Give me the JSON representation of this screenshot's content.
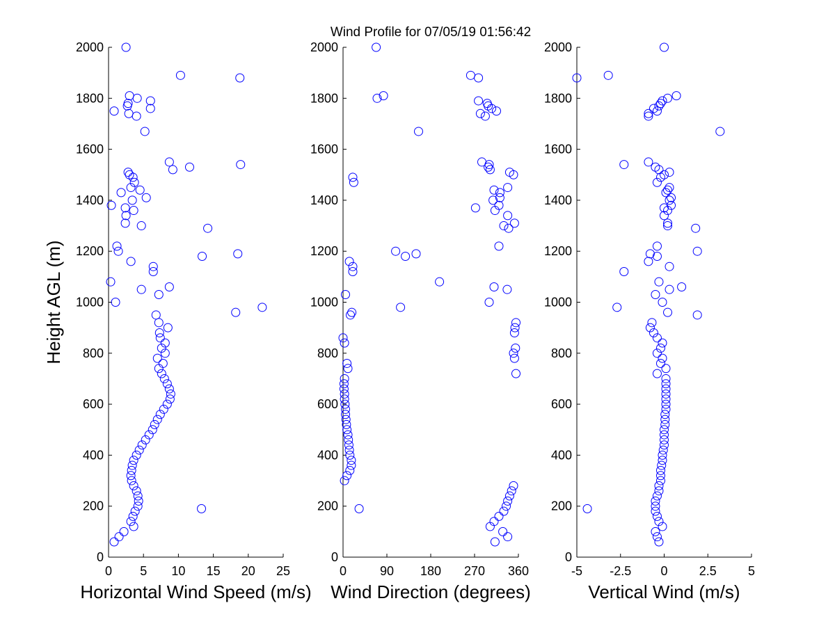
{
  "chart_data": [
    {
      "type": "scatter",
      "color": "#0000ff",
      "xlabel": "Horizontal Wind Speed (m/s)",
      "ylabel": "Height AGL (m)",
      "xlim": [
        0,
        25
      ],
      "xticks": [
        0,
        5,
        10,
        15,
        20,
        25
      ],
      "ylim": [
        0,
        2000
      ],
      "yticks": [
        0,
        200,
        400,
        600,
        800,
        1000,
        1200,
        1400,
        1600,
        1800,
        2000
      ],
      "x": [
        0.8,
        1.5,
        2.2,
        3.6,
        3.2,
        3.5,
        3.8,
        13.3,
        4.2,
        4.3,
        4.2,
        4.0,
        3.6,
        3.3,
        3.2,
        3.3,
        3.4,
        3.6,
        4.0,
        4.4,
        4.8,
        5.3,
        5.8,
        6.3,
        6.6,
        7.0,
        7.4,
        7.9,
        8.4,
        8.8,
        8.9,
        8.7,
        8.4,
        8.0,
        7.6,
        7.2,
        7.8,
        7.0,
        8.1,
        7.6,
        8.1,
        7.4,
        7.3,
        8.5,
        7.2,
        6.8,
        18.2,
        22,
        1.0,
        7.2,
        4.7,
        8.7,
        0.3,
        6.4,
        6.4,
        3.2,
        13.4,
        18.5,
        1.4,
        1.2,
        14.2,
        4.7,
        2.4,
        2.5,
        3.6,
        2.4,
        0.4,
        3.4,
        5.4,
        1.8,
        4.5,
        3.2,
        3.7,
        3.5,
        3.0,
        2.8,
        9.2,
        11.6,
        18.9,
        8.7,
        5.2,
        4.0,
        2.9,
        0.8,
        6.0,
        2.7,
        2.8,
        6.0,
        4.1,
        3.0,
        18.8,
        10.3,
        2.5
      ],
      "y": [
        60,
        80,
        100,
        120,
        140,
        160,
        180,
        190,
        200,
        220,
        240,
        260,
        280,
        300,
        320,
        340,
        360,
        380,
        400,
        420,
        440,
        460,
        480,
        500,
        520,
        540,
        560,
        580,
        600,
        620,
        640,
        660,
        680,
        700,
        720,
        740,
        760,
        780,
        800,
        820,
        840,
        860,
        880,
        900,
        920,
        950,
        960,
        980,
        1000,
        1030,
        1050,
        1060,
        1080,
        1120,
        1140,
        1160,
        1180,
        1190,
        1200,
        1220,
        1290,
        1300,
        1310,
        1340,
        1360,
        1370,
        1380,
        1400,
        1410,
        1430,
        1440,
        1450,
        1470,
        1490,
        1500,
        1510,
        1520,
        1530,
        1540,
        1550,
        1670,
        1730,
        1740,
        1750,
        1760,
        1770,
        1780,
        1790,
        1800,
        1810,
        1880,
        1890,
        2000
      ]
    },
    {
      "type": "scatter",
      "color": "#0000ff",
      "title": "Wind Profile for  07/05/19 01:56:42",
      "xlabel": "Wind Direction (degrees)",
      "xlim": [
        0,
        360
      ],
      "xticks": [
        0,
        90,
        180,
        270,
        360
      ],
      "ylim": [
        0,
        2000
      ],
      "yticks": [
        0,
        200,
        400,
        600,
        800,
        1000,
        1200,
        1400,
        1600,
        1800,
        2000
      ],
      "x": [
        312,
        338,
        328,
        302,
        310,
        320,
        330,
        33,
        335,
        338,
        342,
        346,
        350,
        3,
        8,
        14,
        17,
        17,
        14,
        13,
        12,
        11,
        10,
        8,
        7,
        6,
        5,
        5,
        4,
        3,
        3,
        2,
        2,
        3,
        355,
        10,
        8,
        352,
        350,
        354,
        3,
        0,
        352,
        353,
        355,
        15,
        18,
        118,
        300,
        5,
        337,
        310,
        198,
        20,
        20,
        13,
        128,
        150,
        108,
        320,
        340,
        330,
        352,
        338,
        312,
        272,
        320,
        308,
        322,
        322,
        310,
        338,
        22,
        20,
        350,
        342,
        302,
        298,
        300,
        285,
        155,
        292,
        282,
        315,
        305,
        298,
        296,
        278,
        70,
        83,
        278,
        262,
        68
      ],
      "y": [
        60,
        80,
        100,
        120,
        140,
        160,
        180,
        190,
        200,
        220,
        240,
        260,
        280,
        300,
        320,
        340,
        360,
        380,
        400,
        420,
        440,
        460,
        480,
        500,
        520,
        540,
        560,
        580,
        600,
        620,
        640,
        660,
        680,
        700,
        720,
        740,
        760,
        780,
        800,
        820,
        840,
        860,
        880,
        900,
        920,
        950,
        960,
        980,
        1000,
        1030,
        1050,
        1060,
        1080,
        1120,
        1140,
        1160,
        1180,
        1190,
        1200,
        1220,
        1290,
        1300,
        1310,
        1340,
        1360,
        1370,
        1380,
        1400,
        1410,
        1430,
        1440,
        1450,
        1470,
        1490,
        1500,
        1510,
        1520,
        1530,
        1540,
        1550,
        1670,
        1730,
        1740,
        1750,
        1760,
        1770,
        1780,
        1790,
        1800,
        1810,
        1880,
        1890,
        2000
      ]
    },
    {
      "type": "scatter",
      "color": "#0000ff",
      "xlabel": "Vertical Wind (m/s)",
      "xlim": [
        -5,
        5
      ],
      "xticks": [
        -5,
        -2.5,
        0,
        2.5,
        5
      ],
      "ylim": [
        0,
        2000
      ],
      "yticks": [
        0,
        200,
        400,
        600,
        800,
        1000,
        1200,
        1400,
        1600,
        1800,
        2000
      ],
      "x": [
        -0.3,
        -0.4,
        -0.5,
        -0.1,
        -0.3,
        -0.4,
        -0.5,
        -4.4,
        -0.5,
        -0.5,
        -0.4,
        -0.3,
        -0.3,
        -0.2,
        -0.2,
        -0.2,
        -0.15,
        -0.1,
        -0.1,
        -0.05,
        0,
        0,
        0,
        0,
        0.05,
        0.05,
        0.05,
        0.1,
        0.1,
        0.1,
        0.1,
        0.1,
        0.1,
        0.1,
        -0.4,
        0.1,
        -0.2,
        -0.1,
        -0.4,
        -0.2,
        -0.1,
        -0.4,
        -0.6,
        -0.8,
        -0.7,
        1.9,
        0.2,
        -2.7,
        -0.1,
        -0.5,
        0.3,
        1.0,
        -0.3,
        -2.3,
        0.3,
        -0.9,
        -0.4,
        -0.8,
        1.9,
        -0.4,
        1.8,
        0.2,
        0.2,
        0,
        0.2,
        0,
        0.4,
        0.3,
        0.4,
        0.1,
        0.2,
        0.3,
        -0.4,
        -0.2,
        0,
        0.3,
        -0.3,
        -0.5,
        -2.3,
        -0.9,
        3.2,
        -0.9,
        -0.9,
        -0.4,
        -0.6,
        -0.3,
        -0.2,
        -0.1,
        0.2,
        0.7,
        -5,
        -3.2,
        0
      ],
      "y": [
        60,
        80,
        100,
        120,
        140,
        160,
        180,
        190,
        200,
        220,
        240,
        260,
        280,
        300,
        320,
        340,
        360,
        380,
        400,
        420,
        440,
        460,
        480,
        500,
        520,
        540,
        560,
        580,
        600,
        620,
        640,
        660,
        680,
        700,
        720,
        740,
        760,
        780,
        800,
        820,
        840,
        860,
        880,
        900,
        920,
        950,
        960,
        980,
        1000,
        1030,
        1050,
        1060,
        1080,
        1120,
        1140,
        1160,
        1180,
        1190,
        1200,
        1220,
        1290,
        1300,
        1310,
        1340,
        1360,
        1370,
        1380,
        1400,
        1410,
        1430,
        1440,
        1450,
        1470,
        1490,
        1500,
        1510,
        1520,
        1530,
        1540,
        1550,
        1670,
        1730,
        1740,
        1750,
        1760,
        1770,
        1780,
        1790,
        1800,
        1810,
        1880,
        1890,
        2000
      ]
    }
  ]
}
